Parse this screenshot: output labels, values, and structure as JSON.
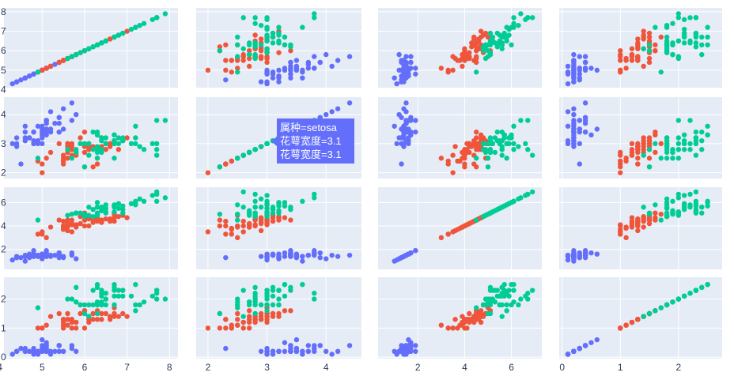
{
  "colors": {
    "setosa": "#636efa",
    "versicolor": "#ef553b",
    "virginica": "#00cc96",
    "plot_background": "#e5ecf6",
    "grid": "#ffffff",
    "tick_text": "#2a3f5f"
  },
  "hover": {
    "line1": "属种=setosa",
    "line2": "花萼宽度=3.1",
    "line3": "花萼宽度=3.1"
  },
  "chart_data": {
    "type": "scatter",
    "subtype": "scatter_matrix",
    "rows": 4,
    "columns": 4,
    "dimensions": [
      "sepal_length",
      "sepal_width",
      "petal_length",
      "petal_width"
    ],
    "axes": {
      "sepal_length": {
        "range": [
          4.1,
          8.2
        ],
        "ticks": [
          4,
          5,
          6,
          7,
          8
        ]
      },
      "sepal_width": {
        "range": [
          1.8,
          4.6
        ],
        "ticks": [
          2,
          3,
          4
        ]
      },
      "petal_length": {
        "range": [
          0.3,
          7.3
        ],
        "ticks": [
          2,
          4,
          6
        ]
      },
      "petal_width": {
        "range": [
          -0.05,
          2.75
        ],
        "ticks": [
          0,
          1,
          2
        ]
      }
    },
    "row_tick_labels": [
      [
        4,
        5,
        6,
        7,
        8
      ],
      [
        2,
        3,
        4
      ],
      [
        2,
        4,
        6
      ],
      [
        0,
        1,
        2
      ]
    ],
    "bottom_tick_labels": [
      [
        4,
        5,
        6,
        7,
        8
      ],
      [
        2,
        3,
        4
      ],
      [
        2,
        4,
        6
      ],
      [
        0,
        1,
        2
      ]
    ],
    "grid": true,
    "series": [
      {
        "color_key": "setosa",
        "points": [
          [
            5.1,
            3.5,
            1.4,
            0.2
          ],
          [
            4.9,
            3.0,
            1.4,
            0.2
          ],
          [
            4.7,
            3.2,
            1.3,
            0.2
          ],
          [
            4.6,
            3.1,
            1.5,
            0.2
          ],
          [
            5.0,
            3.6,
            1.4,
            0.2
          ],
          [
            5.4,
            3.9,
            1.7,
            0.4
          ],
          [
            4.6,
            3.4,
            1.4,
            0.3
          ],
          [
            5.0,
            3.4,
            1.5,
            0.2
          ],
          [
            4.4,
            2.9,
            1.4,
            0.2
          ],
          [
            4.9,
            3.1,
            1.5,
            0.1
          ],
          [
            5.4,
            3.7,
            1.5,
            0.2
          ],
          [
            4.8,
            3.4,
            1.6,
            0.2
          ],
          [
            4.8,
            3.0,
            1.4,
            0.1
          ],
          [
            4.3,
            3.0,
            1.1,
            0.1
          ],
          [
            5.8,
            4.0,
            1.2,
            0.2
          ],
          [
            5.7,
            4.4,
            1.5,
            0.4
          ],
          [
            5.4,
            3.9,
            1.3,
            0.4
          ],
          [
            5.1,
            3.5,
            1.4,
            0.3
          ],
          [
            5.7,
            3.8,
            1.7,
            0.3
          ],
          [
            5.1,
            3.8,
            1.5,
            0.3
          ],
          [
            5.4,
            3.4,
            1.7,
            0.2
          ],
          [
            5.1,
            3.7,
            1.5,
            0.4
          ],
          [
            4.6,
            3.6,
            1.0,
            0.2
          ],
          [
            5.1,
            3.3,
            1.7,
            0.5
          ],
          [
            4.8,
            3.4,
            1.9,
            0.2
          ],
          [
            5.0,
            3.0,
            1.6,
            0.2
          ],
          [
            5.0,
            3.4,
            1.6,
            0.4
          ],
          [
            5.2,
            3.5,
            1.5,
            0.2
          ],
          [
            5.2,
            3.4,
            1.4,
            0.2
          ],
          [
            4.7,
            3.2,
            1.6,
            0.2
          ],
          [
            4.8,
            3.1,
            1.6,
            0.2
          ],
          [
            5.4,
            3.4,
            1.5,
            0.4
          ],
          [
            5.2,
            4.1,
            1.5,
            0.1
          ],
          [
            5.5,
            4.2,
            1.4,
            0.2
          ],
          [
            4.9,
            3.1,
            1.5,
            0.2
          ],
          [
            5.0,
            3.2,
            1.2,
            0.2
          ],
          [
            5.5,
            3.5,
            1.3,
            0.2
          ],
          [
            4.9,
            3.6,
            1.4,
            0.1
          ],
          [
            4.4,
            3.0,
            1.3,
            0.2
          ],
          [
            5.1,
            3.4,
            1.5,
            0.2
          ],
          [
            5.0,
            3.5,
            1.3,
            0.3
          ],
          [
            4.5,
            2.3,
            1.3,
            0.3
          ],
          [
            4.4,
            3.2,
            1.3,
            0.2
          ],
          [
            5.0,
            3.5,
            1.6,
            0.6
          ],
          [
            5.1,
            3.8,
            1.9,
            0.4
          ],
          [
            4.8,
            3.0,
            1.4,
            0.3
          ],
          [
            5.1,
            3.8,
            1.6,
            0.2
          ],
          [
            4.6,
            3.2,
            1.4,
            0.2
          ],
          [
            5.3,
            3.7,
            1.5,
            0.2
          ],
          [
            5.0,
            3.3,
            1.4,
            0.2
          ]
        ]
      },
      {
        "color_key": "versicolor",
        "points": [
          [
            7.0,
            3.2,
            4.7,
            1.4
          ],
          [
            6.4,
            3.2,
            4.5,
            1.5
          ],
          [
            6.9,
            3.1,
            4.9,
            1.5
          ],
          [
            5.5,
            2.3,
            4.0,
            1.3
          ],
          [
            6.5,
            2.8,
            4.6,
            1.5
          ],
          [
            5.7,
            2.8,
            4.5,
            1.3
          ],
          [
            6.3,
            3.3,
            4.7,
            1.6
          ],
          [
            4.9,
            2.4,
            3.3,
            1.0
          ],
          [
            6.6,
            2.9,
            4.6,
            1.3
          ],
          [
            5.2,
            2.7,
            3.9,
            1.4
          ],
          [
            5.0,
            2.0,
            3.5,
            1.0
          ],
          [
            5.9,
            3.0,
            4.2,
            1.5
          ],
          [
            6.0,
            2.2,
            4.0,
            1.0
          ],
          [
            6.1,
            2.9,
            4.7,
            1.4
          ],
          [
            5.6,
            2.9,
            3.6,
            1.3
          ],
          [
            6.7,
            3.1,
            4.4,
            1.4
          ],
          [
            5.6,
            3.0,
            4.5,
            1.5
          ],
          [
            5.8,
            2.7,
            4.1,
            1.0
          ],
          [
            6.2,
            2.2,
            4.5,
            1.5
          ],
          [
            5.6,
            2.5,
            3.9,
            1.1
          ],
          [
            5.9,
            3.2,
            4.8,
            1.8
          ],
          [
            6.1,
            2.8,
            4.0,
            1.3
          ],
          [
            6.3,
            2.5,
            4.9,
            1.5
          ],
          [
            6.1,
            2.8,
            4.7,
            1.2
          ],
          [
            6.4,
            2.9,
            4.3,
            1.3
          ],
          [
            6.6,
            3.0,
            4.4,
            1.4
          ],
          [
            6.8,
            2.8,
            4.8,
            1.4
          ],
          [
            6.7,
            3.0,
            5.0,
            1.7
          ],
          [
            6.0,
            2.9,
            4.5,
            1.5
          ],
          [
            5.7,
            2.6,
            3.5,
            1.0
          ],
          [
            5.5,
            2.4,
            3.8,
            1.1
          ],
          [
            5.5,
            2.4,
            3.7,
            1.0
          ],
          [
            5.8,
            2.7,
            3.9,
            1.2
          ],
          [
            6.0,
            2.7,
            5.1,
            1.6
          ],
          [
            5.4,
            3.0,
            4.5,
            1.5
          ],
          [
            6.0,
            3.4,
            4.5,
            1.6
          ],
          [
            6.7,
            3.1,
            4.7,
            1.5
          ],
          [
            6.3,
            2.3,
            4.4,
            1.3
          ],
          [
            5.6,
            3.0,
            4.1,
            1.3
          ],
          [
            5.5,
            2.5,
            4.0,
            1.3
          ],
          [
            5.5,
            2.6,
            4.4,
            1.2
          ],
          [
            6.1,
            3.0,
            4.6,
            1.4
          ],
          [
            5.8,
            2.6,
            4.0,
            1.2
          ],
          [
            5.0,
            2.3,
            3.3,
            1.0
          ],
          [
            5.6,
            2.7,
            4.2,
            1.3
          ],
          [
            5.7,
            3.0,
            4.2,
            1.2
          ],
          [
            5.7,
            2.9,
            4.2,
            1.3
          ],
          [
            6.2,
            2.9,
            4.3,
            1.3
          ],
          [
            5.1,
            2.5,
            3.0,
            1.1
          ],
          [
            5.7,
            2.8,
            4.1,
            1.3
          ]
        ]
      },
      {
        "color_key": "virginica",
        "points": [
          [
            6.3,
            3.3,
            6.0,
            2.5
          ],
          [
            5.8,
            2.7,
            5.1,
            1.9
          ],
          [
            7.1,
            3.0,
            5.9,
            2.1
          ],
          [
            6.3,
            2.9,
            5.6,
            1.8
          ],
          [
            6.5,
            3.0,
            5.8,
            2.2
          ],
          [
            7.6,
            3.0,
            6.6,
            2.1
          ],
          [
            4.9,
            2.5,
            4.5,
            1.7
          ],
          [
            7.3,
            2.9,
            6.3,
            1.8
          ],
          [
            6.7,
            2.5,
            5.8,
            1.8
          ],
          [
            7.2,
            3.6,
            6.1,
            2.5
          ],
          [
            6.5,
            3.2,
            5.1,
            2.0
          ],
          [
            6.4,
            2.7,
            5.3,
            1.9
          ],
          [
            6.8,
            3.0,
            5.5,
            2.1
          ],
          [
            5.7,
            2.5,
            5.0,
            2.0
          ],
          [
            5.8,
            2.8,
            5.1,
            2.4
          ],
          [
            6.4,
            3.2,
            5.3,
            2.3
          ],
          [
            6.5,
            3.0,
            5.5,
            1.8
          ],
          [
            7.7,
            3.8,
            6.7,
            2.2
          ],
          [
            7.7,
            2.6,
            6.9,
            2.3
          ],
          [
            6.0,
            2.2,
            5.0,
            1.5
          ],
          [
            6.9,
            3.2,
            5.7,
            2.3
          ],
          [
            5.6,
            2.8,
            4.9,
            2.0
          ],
          [
            7.7,
            2.8,
            6.7,
            2.0
          ],
          [
            6.3,
            2.7,
            4.9,
            1.8
          ],
          [
            6.7,
            3.3,
            5.7,
            2.1
          ],
          [
            7.2,
            3.2,
            6.0,
            1.8
          ],
          [
            6.2,
            2.8,
            4.8,
            1.8
          ],
          [
            6.1,
            3.0,
            4.9,
            1.8
          ],
          [
            6.4,
            2.8,
            5.6,
            2.1
          ],
          [
            7.2,
            3.0,
            5.8,
            1.6
          ],
          [
            7.4,
            2.8,
            6.1,
            1.9
          ],
          [
            7.9,
            3.8,
            6.4,
            2.0
          ],
          [
            6.4,
            2.8,
            5.6,
            2.2
          ],
          [
            6.3,
            2.8,
            5.1,
            1.5
          ],
          [
            6.1,
            2.6,
            5.6,
            1.4
          ],
          [
            7.7,
            3.0,
            6.1,
            2.3
          ],
          [
            6.3,
            3.4,
            5.6,
            2.4
          ],
          [
            6.4,
            3.1,
            5.5,
            1.8
          ],
          [
            6.0,
            3.0,
            4.8,
            1.8
          ],
          [
            6.9,
            3.1,
            5.4,
            2.1
          ],
          [
            6.7,
            3.1,
            5.6,
            2.4
          ],
          [
            6.9,
            3.1,
            5.1,
            2.3
          ],
          [
            5.8,
            2.7,
            5.1,
            1.9
          ],
          [
            6.8,
            3.2,
            5.9,
            2.3
          ],
          [
            6.7,
            3.3,
            5.7,
            2.5
          ],
          [
            6.7,
            3.0,
            5.2,
            2.3
          ],
          [
            6.3,
            2.5,
            5.0,
            1.9
          ],
          [
            6.5,
            3.0,
            5.2,
            2.0
          ],
          [
            6.2,
            3.4,
            5.4,
            2.3
          ],
          [
            5.9,
            3.0,
            5.1,
            1.8
          ]
        ]
      }
    ]
  }
}
